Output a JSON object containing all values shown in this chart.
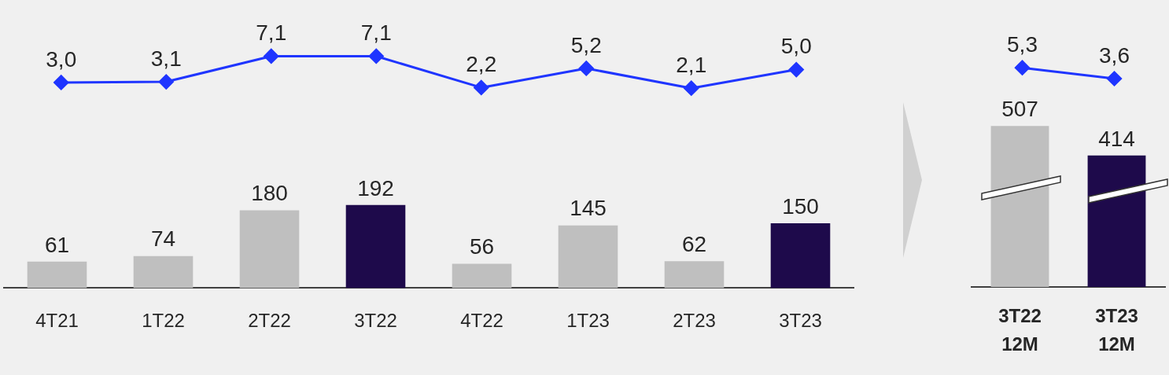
{
  "chart_data": [
    {
      "type": "line",
      "categories": [
        null,
        null,
        null,
        null,
        null,
        null,
        null,
        null
      ],
      "series": [
        {
          "color": "#1f35ff",
          "values": [
            3.0,
            3.1,
            7.1,
            7.1,
            2.2,
            5.2,
            2.1,
            5.0
          ],
          "value_labels": [
            "3,0",
            "3,1",
            "7,1",
            "7,1",
            "2,2",
            "5,2",
            "2,1",
            "5,0"
          ]
        }
      ],
      "tick_labels": false,
      "legend": false,
      "grid": false,
      "marker": "diamond"
    },
    {
      "type": "bar",
      "categories": [
        "4T21",
        "1T22",
        "2T22",
        "3T22",
        "4T22",
        "1T23",
        "2T23",
        "3T23"
      ],
      "series": [
        {
          "colors": [
            "#bfbfbf",
            "#bfbfbf",
            "#bfbfbf",
            "#1e0a4b",
            "#bfbfbf",
            "#bfbfbf",
            "#bfbfbf",
            "#1e0a4b"
          ],
          "values": [
            61,
            74,
            180,
            192,
            56,
            145,
            62,
            150
          ]
        }
      ],
      "data_labels": true,
      "tick_labels": "x",
      "legend": false,
      "grid": false
    },
    {
      "type": "line",
      "categories": [
        null,
        null
      ],
      "series": [
        {
          "color": "#1f35ff",
          "values": [
            5.3,
            3.6
          ],
          "value_labels": [
            "5,3",
            "3,6"
          ]
        }
      ],
      "tick_labels": false,
      "legend": false,
      "grid": false,
      "marker": "diamond"
    },
    {
      "type": "bar",
      "categories": [
        "3T22\n12M",
        "3T23\n12M"
      ],
      "series": [
        {
          "colors": [
            "#bfbfbf",
            "#1e0a4b"
          ],
          "values": [
            507,
            414
          ]
        }
      ],
      "data_labels": true,
      "tick_labels": "x",
      "legend": false,
      "grid": false
    }
  ]
}
